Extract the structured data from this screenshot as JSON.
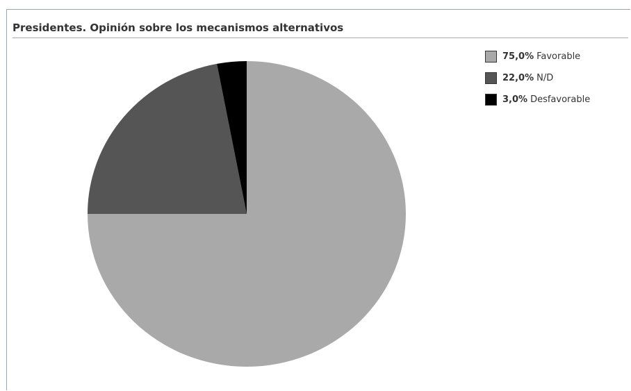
{
  "chart_data": {
    "type": "pie",
    "title": "Presidentes. Opinión sobre los mecanismos alternativos",
    "slices": [
      {
        "label": "Favorable",
        "value": 75.0,
        "display": "75,0%",
        "color": "#a9a9a9"
      },
      {
        "label": "N/D",
        "value": 22.0,
        "display": "22,0%",
        "color": "#555555"
      },
      {
        "label": "Desfavorable",
        "value": 3.0,
        "display": "3,0%",
        "color": "#000000"
      }
    ],
    "legend_position": "top-right"
  }
}
